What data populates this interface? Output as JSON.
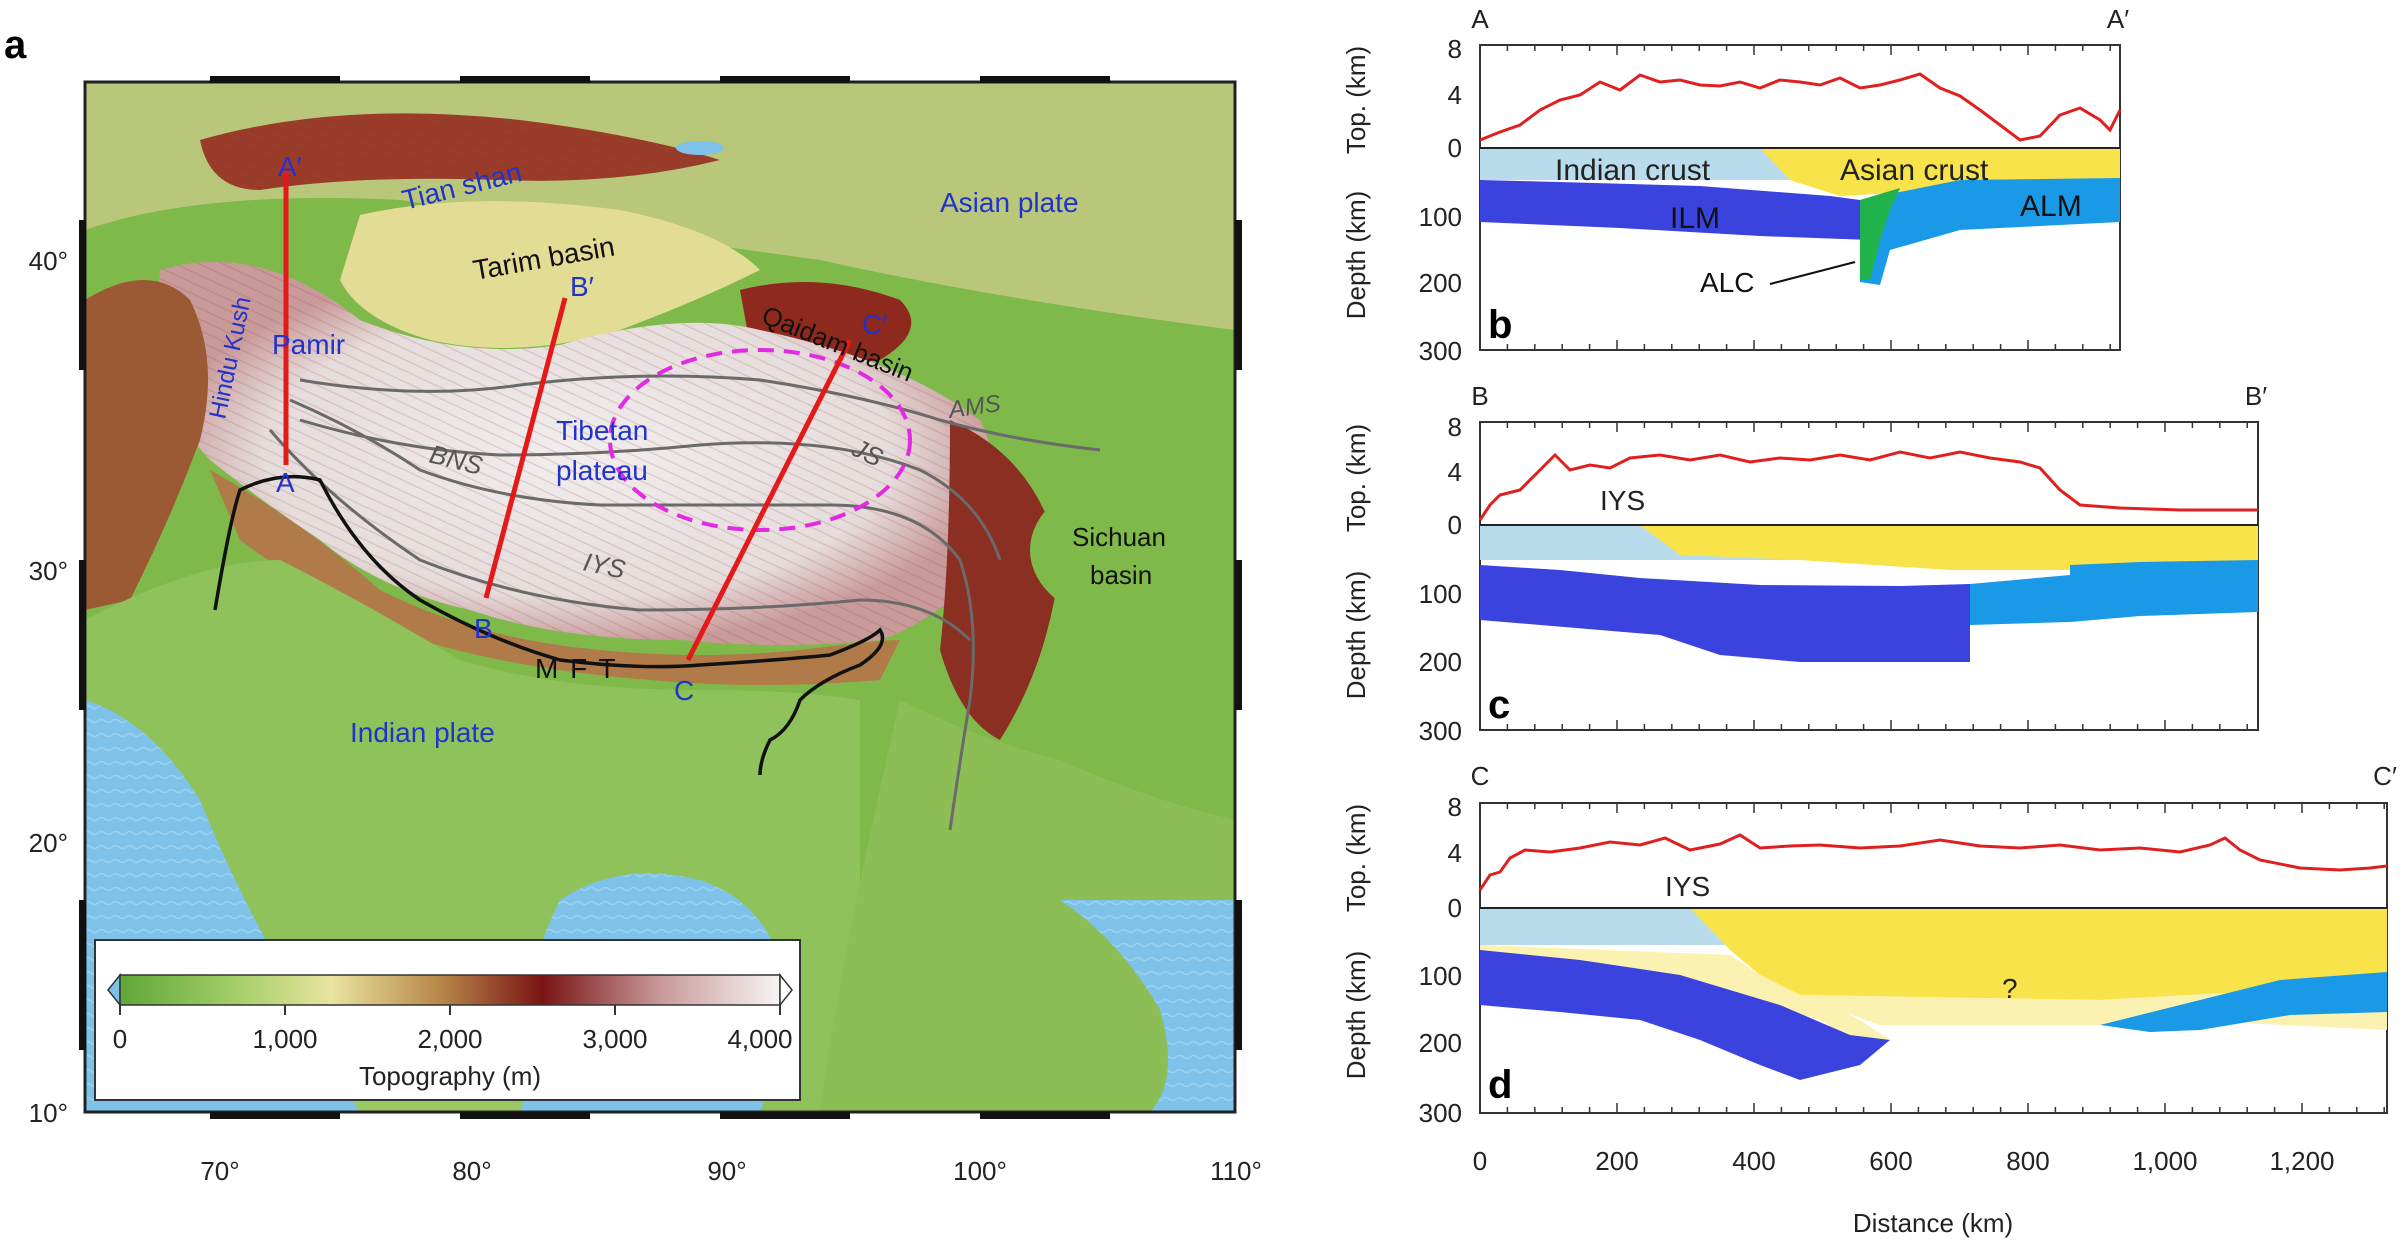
{
  "panel_letters": {
    "a": "a",
    "b": "b",
    "c": "c",
    "d": "d"
  },
  "map": {
    "lon_ticks": [
      "70°",
      "80°",
      "90°",
      "100°",
      "110°"
    ],
    "lat_ticks": [
      "40°",
      "30°",
      "20°",
      "10°"
    ],
    "labels": {
      "tian_shan": "Tian shan",
      "asian_plate": "Asian plate",
      "tarim_basin": "Tarim basin",
      "hindu_kush": "Hindu Kush",
      "pamir": "Pamir",
      "qaidam_basin": "Qaidam basin",
      "ams": "AMS",
      "bns": "BNS",
      "tibetan_plateau_1": "Tibetan",
      "tibetan_plateau_2": "plateau",
      "js": "JS",
      "iys": "IYS",
      "sichuan_1": "Sichuan",
      "sichuan_2": "basin",
      "mft": "M F T",
      "indian_plate": "Indian plate"
    },
    "profile_endpoints": {
      "a_start": "A",
      "a_end": "A′",
      "b_start": "B",
      "b_end": "B′",
      "c_start": "C",
      "c_end": "C′"
    },
    "colorbar": {
      "ticks": [
        "0",
        "1,000",
        "2,000",
        "3,000",
        "4,000"
      ],
      "label": "Topography (m)",
      "colors": [
        "#5fa837",
        "#a6cf6a",
        "#e9e3a0",
        "#b98a4b",
        "#7a1414",
        "#c99a9a",
        "#f8f4f4"
      ]
    }
  },
  "sections": {
    "b": {
      "start": "A",
      "end": "A′",
      "labels": {
        "indian_crust": "Indian crust",
        "asian_crust": "Asian crust",
        "ilm": "ILM",
        "alm": "ALM",
        "alc": "ALC"
      }
    },
    "c": {
      "start": "B",
      "end": "B′",
      "labels": {
        "iys": "IYS"
      }
    },
    "d": {
      "start": "C",
      "end": "C′",
      "labels": {
        "iys": "IYS",
        "question": "?"
      }
    },
    "top_axis_label": "Top. (km)",
    "depth_axis_label": "Depth (km)",
    "top_ticks": [
      "8",
      "4",
      "0"
    ],
    "depth_ticks": [
      "100",
      "200",
      "300"
    ],
    "distance_ticks": [
      "0",
      "200",
      "400",
      "600",
      "800",
      "1,000",
      "1,200"
    ],
    "distance_label": "Distance (km)",
    "colors": {
      "indian_crust": "#b9dced",
      "asian_crust": "#f9e34a",
      "ilm": "#3b43de",
      "alm": "#1a9ae6",
      "alc": "#21b24b",
      "unknown_mantle": "#fbf1b0",
      "topography_line": "#e02020"
    }
  }
}
